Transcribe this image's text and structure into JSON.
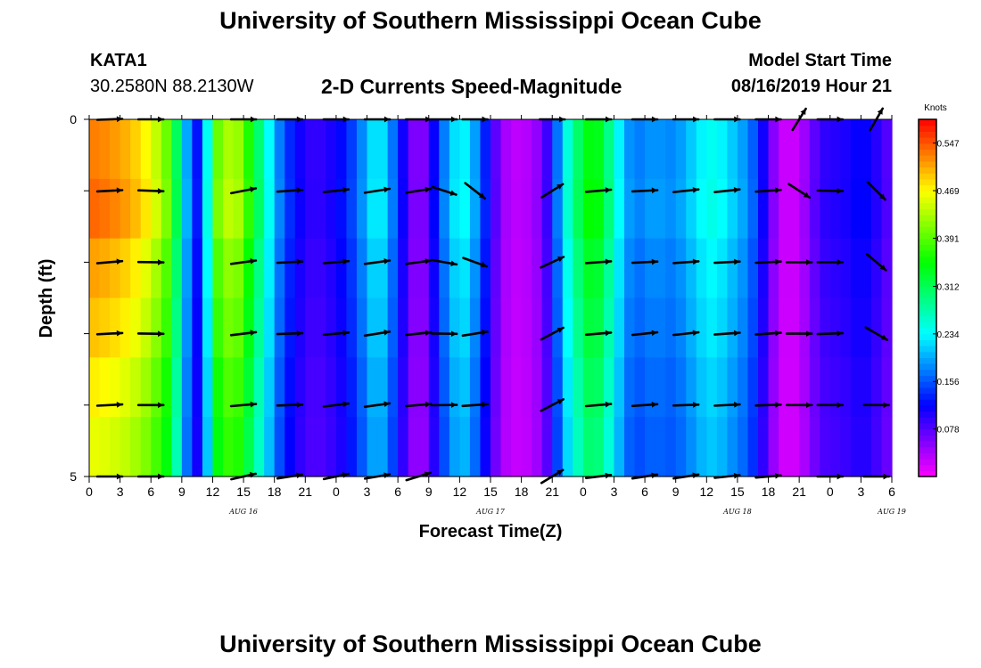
{
  "header": {
    "title_top": "University of Southern Mississippi Ocean Cube",
    "title_bottom": "University of Southern Mississippi Ocean Cube",
    "station_id": "KATA1",
    "station_coords": "30.2580N 88.2130W",
    "subtitle": "2-D Currents Speed-Magnitude",
    "model_start_label": "Model Start Time",
    "model_start_time": "08/16/2019 Hour 21"
  },
  "chart_data": {
    "type": "heatmap",
    "title": "2-D Currents Speed-Magnitude",
    "xlabel": "Forecast Time(Z)",
    "ylabel": "Depth (ft)",
    "x_ticks": [
      "0",
      "3",
      "6",
      "9",
      "12",
      "15",
      "18",
      "21",
      "0",
      "3",
      "6",
      "9",
      "12",
      "15",
      "18",
      "21",
      "0",
      "3",
      "6",
      "9",
      "12",
      "15",
      "18",
      "21",
      "0",
      "3",
      "6"
    ],
    "day_labels": [
      {
        "label": "AUG 16",
        "hour": 15
      },
      {
        "label": "AUG 17",
        "hour": 39
      },
      {
        "label": "AUG 18",
        "hour": 63
      },
      {
        "label": "AUG 19",
        "hour": 78
      }
    ],
    "xlim_hours": [
      0,
      78
    ],
    "y_ticks": [
      "0",
      "5"
    ],
    "ylim": [
      0,
      5
    ],
    "depth_levels": [
      0,
      1,
      2,
      3,
      4,
      5
    ],
    "colorbar": {
      "unit": "Knots",
      "range": [
        0,
        0.586
      ],
      "tick_labels": [
        "0.547",
        "0.469",
        "0.391",
        "0.312",
        "0.234",
        "0.156",
        "0.078"
      ],
      "tick_values": [
        0.547,
        0.469,
        0.391,
        0.312,
        0.234,
        0.156,
        0.078
      ]
    },
    "speed_profile_hours": [
      0,
      2,
      4,
      6,
      8,
      9,
      10,
      11,
      12,
      13,
      14,
      15,
      16,
      17,
      18,
      19,
      20,
      21,
      22,
      23,
      24,
      25,
      26,
      27,
      28,
      29,
      30,
      31,
      32,
      33,
      34,
      35,
      36,
      37,
      38,
      39,
      40,
      41,
      42,
      43,
      44,
      45,
      46,
      47,
      48,
      49,
      50,
      51,
      52,
      53,
      54,
      55,
      56,
      57,
      58,
      59,
      60,
      61,
      62,
      63,
      64,
      65,
      66,
      67,
      68,
      69,
      70,
      71,
      72,
      73,
      74,
      75,
      76,
      77,
      78
    ],
    "speed_profile": [
      0.53,
      0.52,
      0.5,
      0.46,
      0.38,
      0.24,
      0.15,
      0.1,
      0.38,
      0.42,
      0.44,
      0.4,
      0.33,
      0.27,
      0.2,
      0.15,
      0.12,
      0.1,
      0.09,
      0.1,
      0.11,
      0.13,
      0.16,
      0.2,
      0.24,
      0.2,
      0.14,
      0.08,
      0.04,
      0.08,
      0.15,
      0.2,
      0.24,
      0.22,
      0.16,
      0.1,
      0.05,
      0.03,
      0.03,
      0.04,
      0.06,
      0.12,
      0.22,
      0.28,
      0.33,
      0.36,
      0.32,
      0.26,
      0.2,
      0.17,
      0.18,
      0.19,
      0.18,
      0.18,
      0.2,
      0.22,
      0.24,
      0.24,
      0.22,
      0.2,
      0.18,
      0.14,
      0.08,
      0.03,
      0.02,
      0.03,
      0.06,
      0.09,
      0.1,
      0.1,
      0.11,
      0.12,
      0.11,
      0.09,
      0.07
    ],
    "depth_modifiers": [
      1.0,
      1.02,
      0.97,
      0.94,
      0.9,
      0.87
    ],
    "arrow_columns": [
      {
        "hour": 2,
        "dirs": [
          -2,
          -3,
          -5,
          -3,
          -3,
          0
        ]
      },
      {
        "hour": 6,
        "dirs": [
          0,
          2,
          1,
          1,
          0,
          0
        ]
      },
      {
        "hour": 15,
        "dirs": [
          0,
          -11,
          -8,
          -7,
          -5,
          -13
        ]
      },
      {
        "hour": 19.5,
        "dirs": [
          0,
          -4,
          -3,
          -2,
          -2,
          -9
        ]
      },
      {
        "hour": 24,
        "dirs": [
          0,
          -6,
          -5,
          -5,
          -7,
          -12
        ]
      },
      {
        "hour": 28,
        "dirs": [
          0,
          -9,
          -8,
          -9,
          -8,
          -10
        ]
      },
      {
        "hour": 32,
        "dirs": [
          0,
          -9,
          -8,
          -6,
          -5,
          -17
        ]
      },
      {
        "hour": 34.5,
        "dirs": [
          0,
          18,
          10,
          1,
          -1,
          null
        ]
      },
      {
        "hour": 37.5,
        "dirs": [
          0,
          38,
          20,
          -9,
          -4,
          null
        ]
      },
      {
        "hour": 45,
        "dirs": [
          0,
          -32,
          -25,
          -28,
          -27,
          -31
        ]
      },
      {
        "hour": 49.5,
        "dirs": [
          0,
          -5,
          -4,
          -5,
          -5,
          -7
        ]
      },
      {
        "hour": 54,
        "dirs": [
          0,
          -3,
          -3,
          -6,
          -4,
          -9
        ]
      },
      {
        "hour": 58,
        "dirs": [
          0,
          -6,
          -4,
          -6,
          -2,
          -9
        ]
      },
      {
        "hour": 62,
        "dirs": [
          0,
          -6,
          -3,
          -4,
          -3,
          -6
        ]
      },
      {
        "hour": 66,
        "dirs": [
          0,
          -4,
          -3,
          -4,
          -2,
          -5
        ]
      },
      {
        "hour": 69,
        "dirs": [
          -58,
          33,
          0,
          0,
          0,
          null
        ]
      },
      {
        "hour": 72,
        "dirs": [
          0,
          1,
          0,
          -2,
          0,
          0
        ]
      },
      {
        "hour": 76.5,
        "dirs": [
          -60,
          45,
          40,
          30,
          0,
          0
        ]
      }
    ]
  }
}
